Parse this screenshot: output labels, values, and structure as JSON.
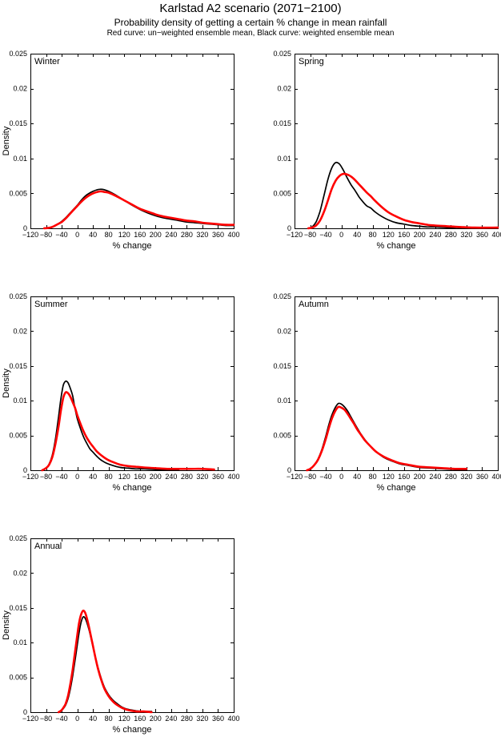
{
  "header": {
    "title": "Karlstad A2 scenario (2071−2100)",
    "subtitle": "Probability density of getting a certain % change in mean rainfall",
    "note": "Red curve: un−weighted ensemble mean, Black curve: weighted ensemble mean"
  },
  "colors": {
    "black_curve": "#000000",
    "red_curve": "#ff0000",
    "background": "#ffffff"
  },
  "axes": {
    "xlabel": "% change",
    "ylabel": "Density",
    "xlim": [
      -120,
      400
    ],
    "ylim": [
      0,
      0.025
    ],
    "xticks": [
      -120,
      -80,
      -40,
      0,
      40,
      80,
      120,
      160,
      200,
      240,
      280,
      320,
      360,
      400
    ],
    "xtick_labels": [
      "−120",
      "−80",
      "−40",
      "0",
      "40",
      "80",
      "120",
      "160",
      "200",
      "240",
      "280",
      "320",
      "360",
      "400"
    ],
    "yticks": [
      0,
      0.005,
      0.01,
      0.015,
      0.02,
      0.025
    ],
    "ytick_labels": [
      "0",
      "0.005",
      "0.01",
      "0.015",
      "0.02",
      "0.025"
    ],
    "grid": false,
    "legend": "none"
  },
  "chart_data": [
    {
      "type": "line",
      "title": "Winter",
      "xlabel": "% change",
      "ylabel": "Density",
      "xlim": [
        -120,
        400
      ],
      "ylim": [
        0,
        0.025
      ],
      "series": [
        {
          "name": "weighted ensemble mean",
          "color": "#000000",
          "x": [
            -85,
            -70,
            -60,
            -50,
            -40,
            -30,
            -20,
            -10,
            0,
            10,
            20,
            30,
            40,
            50,
            60,
            70,
            80,
            100,
            120,
            140,
            160,
            180,
            200,
            220,
            240,
            260,
            280,
            300,
            320,
            340,
            360,
            380,
            400
          ],
          "y": [
            0,
            0.0001,
            0.0003,
            0.0006,
            0.001,
            0.0015,
            0.0021,
            0.0027,
            0.0033,
            0.004,
            0.0046,
            0.005,
            0.0053,
            0.0055,
            0.0056,
            0.0055,
            0.0053,
            0.0047,
            0.004,
            0.0033,
            0.0027,
            0.0022,
            0.0018,
            0.0015,
            0.0013,
            0.0011,
            0.0009,
            0.0008,
            0.0007,
            0.0006,
            0.0005,
            0.0004,
            0.0004
          ]
        },
        {
          "name": "un-weighted ensemble mean",
          "color": "#ff0000",
          "x": [
            -85,
            -70,
            -60,
            -50,
            -40,
            -30,
            -20,
            -10,
            0,
            10,
            20,
            30,
            40,
            50,
            60,
            70,
            80,
            100,
            120,
            140,
            160,
            180,
            200,
            220,
            240,
            260,
            280,
            300,
            320,
            340,
            360,
            380,
            400
          ],
          "y": [
            0,
            0.0001,
            0.0003,
            0.0006,
            0.0009,
            0.0014,
            0.002,
            0.0026,
            0.0032,
            0.0038,
            0.0043,
            0.0047,
            0.005,
            0.0052,
            0.0053,
            0.0052,
            0.0051,
            0.0046,
            0.004,
            0.0034,
            0.0028,
            0.0024,
            0.002,
            0.0017,
            0.0015,
            0.0013,
            0.0011,
            0.001,
            0.0008,
            0.0007,
            0.0006,
            0.0005,
            0.0005
          ]
        }
      ]
    },
    {
      "type": "line",
      "title": "Spring",
      "xlabel": "% change",
      "ylabel": "Density",
      "xlim": [
        -120,
        400
      ],
      "ylim": [
        0,
        0.025
      ],
      "series": [
        {
          "name": "weighted ensemble mean",
          "color": "#000000",
          "x": [
            -85,
            -75,
            -65,
            -55,
            -45,
            -35,
            -25,
            -15,
            -5,
            5,
            15,
            25,
            35,
            45,
            55,
            65,
            75,
            85,
            100,
            120,
            140,
            160,
            180,
            200,
            220,
            240,
            270,
            300,
            340,
            400
          ],
          "y": [
            0,
            0.0002,
            0.0009,
            0.0024,
            0.0046,
            0.0069,
            0.0086,
            0.0094,
            0.0092,
            0.0083,
            0.0072,
            0.0062,
            0.0054,
            0.0045,
            0.0038,
            0.0032,
            0.0029,
            0.0024,
            0.0018,
            0.0012,
            0.0008,
            0.0006,
            0.0004,
            0.0003,
            0.0002,
            0.0002,
            0.0001,
            0.0001,
            0,
            0
          ]
        },
        {
          "name": "un-weighted ensemble mean",
          "color": "#ff0000",
          "x": [
            -85,
            -75,
            -65,
            -55,
            -45,
            -35,
            -25,
            -15,
            -5,
            5,
            15,
            25,
            35,
            45,
            55,
            65,
            75,
            85,
            100,
            120,
            140,
            160,
            180,
            200,
            220,
            240,
            270,
            300,
            340,
            400
          ],
          "y": [
            0,
            0.0001,
            0.0004,
            0.0011,
            0.0023,
            0.0039,
            0.0056,
            0.0068,
            0.0075,
            0.0078,
            0.0077,
            0.0074,
            0.0069,
            0.0063,
            0.0057,
            0.0051,
            0.0046,
            0.004,
            0.0032,
            0.0023,
            0.0017,
            0.0012,
            0.0009,
            0.0007,
            0.0005,
            0.0004,
            0.0003,
            0.0002,
            0.0001,
            0.0001
          ]
        }
      ]
    },
    {
      "type": "line",
      "title": "Summer",
      "xlabel": "% change",
      "ylabel": "Density",
      "xlim": [
        -120,
        400
      ],
      "ylim": [
        0,
        0.025
      ],
      "series": [
        {
          "name": "weighted ensemble mean",
          "color": "#000000",
          "x": [
            -90,
            -80,
            -72,
            -64,
            -56,
            -48,
            -42,
            -36,
            -30,
            -24,
            -18,
            -12,
            -6,
            0,
            8,
            16,
            24,
            32,
            40,
            50,
            60,
            75,
            90,
            110,
            130,
            150,
            170,
            200,
            230,
            260
          ],
          "y": [
            0,
            0.0003,
            0.0009,
            0.0022,
            0.0045,
            0.0077,
            0.0103,
            0.0122,
            0.0128,
            0.0126,
            0.0118,
            0.0107,
            0.0089,
            0.0074,
            0.006,
            0.0048,
            0.0039,
            0.0031,
            0.0026,
            0.002,
            0.0015,
            0.001,
            0.0007,
            0.0004,
            0.0003,
            0.0002,
            0.0002,
            0.0001,
            0.0001,
            0.0001
          ]
        },
        {
          "name": "un-weighted ensemble mean",
          "color": "#ff0000",
          "x": [
            -90,
            -80,
            -72,
            -64,
            -56,
            -48,
            -42,
            -36,
            -30,
            -24,
            -18,
            -12,
            -6,
            0,
            8,
            16,
            24,
            32,
            40,
            50,
            60,
            75,
            90,
            110,
            130,
            150,
            170,
            200,
            230,
            260,
            290,
            320,
            350
          ],
          "y": [
            0,
            0.0003,
            0.0008,
            0.0019,
            0.0038,
            0.0063,
            0.0086,
            0.0104,
            0.0112,
            0.0111,
            0.0106,
            0.0098,
            0.009,
            0.0079,
            0.0067,
            0.0056,
            0.0047,
            0.004,
            0.0034,
            0.0027,
            0.0022,
            0.0016,
            0.0012,
            0.0008,
            0.0006,
            0.0005,
            0.0004,
            0.0003,
            0.0002,
            0.0002,
            0.0002,
            0.0002,
            0.0001
          ]
        }
      ]
    },
    {
      "type": "line",
      "title": "Autumn",
      "xlabel": "% change",
      "ylabel": "Density",
      "xlim": [
        -120,
        400
      ],
      "ylim": [
        0,
        0.025
      ],
      "series": [
        {
          "name": "weighted ensemble mean",
          "color": "#000000",
          "x": [
            -88,
            -80,
            -70,
            -60,
            -50,
            -40,
            -32,
            -24,
            -16,
            -8,
            0,
            8,
            16,
            24,
            32,
            40,
            50,
            60,
            75,
            90,
            110,
            130,
            150,
            170,
            200,
            230,
            260,
            290,
            320
          ],
          "y": [
            0,
            0.0002,
            0.0007,
            0.0016,
            0.003,
            0.0049,
            0.0066,
            0.008,
            0.009,
            0.0096,
            0.0095,
            0.0091,
            0.0085,
            0.0077,
            0.0069,
            0.0061,
            0.0052,
            0.0044,
            0.0034,
            0.0026,
            0.0018,
            0.0013,
            0.0009,
            0.0007,
            0.0004,
            0.0003,
            0.0002,
            0.0001,
            0.0001
          ]
        },
        {
          "name": "un-weighted ensemble mean",
          "color": "#ff0000",
          "x": [
            -88,
            -80,
            -70,
            -60,
            -50,
            -40,
            -32,
            -24,
            -16,
            -8,
            0,
            8,
            16,
            24,
            32,
            40,
            50,
            60,
            75,
            90,
            110,
            130,
            150,
            170,
            200,
            230,
            260,
            290,
            320
          ],
          "y": [
            0,
            0.0002,
            0.0007,
            0.0015,
            0.0028,
            0.0045,
            0.0061,
            0.0075,
            0.0085,
            0.0091,
            0.009,
            0.0087,
            0.0081,
            0.0074,
            0.0067,
            0.0059,
            0.0051,
            0.0043,
            0.0034,
            0.0026,
            0.0019,
            0.0014,
            0.001,
            0.0008,
            0.0005,
            0.0004,
            0.0003,
            0.0002,
            0.0002
          ]
        }
      ]
    },
    {
      "type": "line",
      "title": "Annual",
      "xlabel": "% change",
      "ylabel": "Density",
      "xlim": [
        -120,
        400
      ],
      "ylim": [
        0,
        0.025
      ],
      "series": [
        {
          "name": "weighted ensemble mean",
          "color": "#000000",
          "x": [
            -48,
            -42,
            -36,
            -30,
            -24,
            -18,
            -12,
            -6,
            0,
            5,
            10,
            15,
            20,
            25,
            30,
            36,
            42,
            48,
            55,
            62,
            70,
            80,
            90,
            100,
            115,
            130,
            150,
            170,
            190
          ],
          "y": [
            0,
            0.0002,
            0.0005,
            0.001,
            0.0019,
            0.0033,
            0.0052,
            0.0074,
            0.0097,
            0.0116,
            0.013,
            0.0137,
            0.0135,
            0.0128,
            0.0118,
            0.0104,
            0.0089,
            0.0075,
            0.006,
            0.0047,
            0.0035,
            0.0025,
            0.0018,
            0.0013,
            0.0007,
            0.0004,
            0.0002,
            0.0001,
            0.0001
          ]
        },
        {
          "name": "un-weighted ensemble mean",
          "color": "#ff0000",
          "x": [
            -48,
            -42,
            -36,
            -30,
            -24,
            -18,
            -12,
            -6,
            0,
            5,
            10,
            15,
            20,
            25,
            30,
            36,
            42,
            48,
            55,
            62,
            70,
            80,
            90,
            100,
            115,
            130,
            150,
            170,
            190
          ],
          "y": [
            0,
            0.0002,
            0.0006,
            0.0012,
            0.0023,
            0.004,
            0.0061,
            0.0086,
            0.0111,
            0.013,
            0.0141,
            0.0146,
            0.0143,
            0.0134,
            0.0122,
            0.0106,
            0.009,
            0.0074,
            0.0058,
            0.0045,
            0.0033,
            0.0023,
            0.0016,
            0.0011,
            0.0006,
            0.0003,
            0.0001,
            0.0001,
            0
          ]
        }
      ]
    }
  ]
}
